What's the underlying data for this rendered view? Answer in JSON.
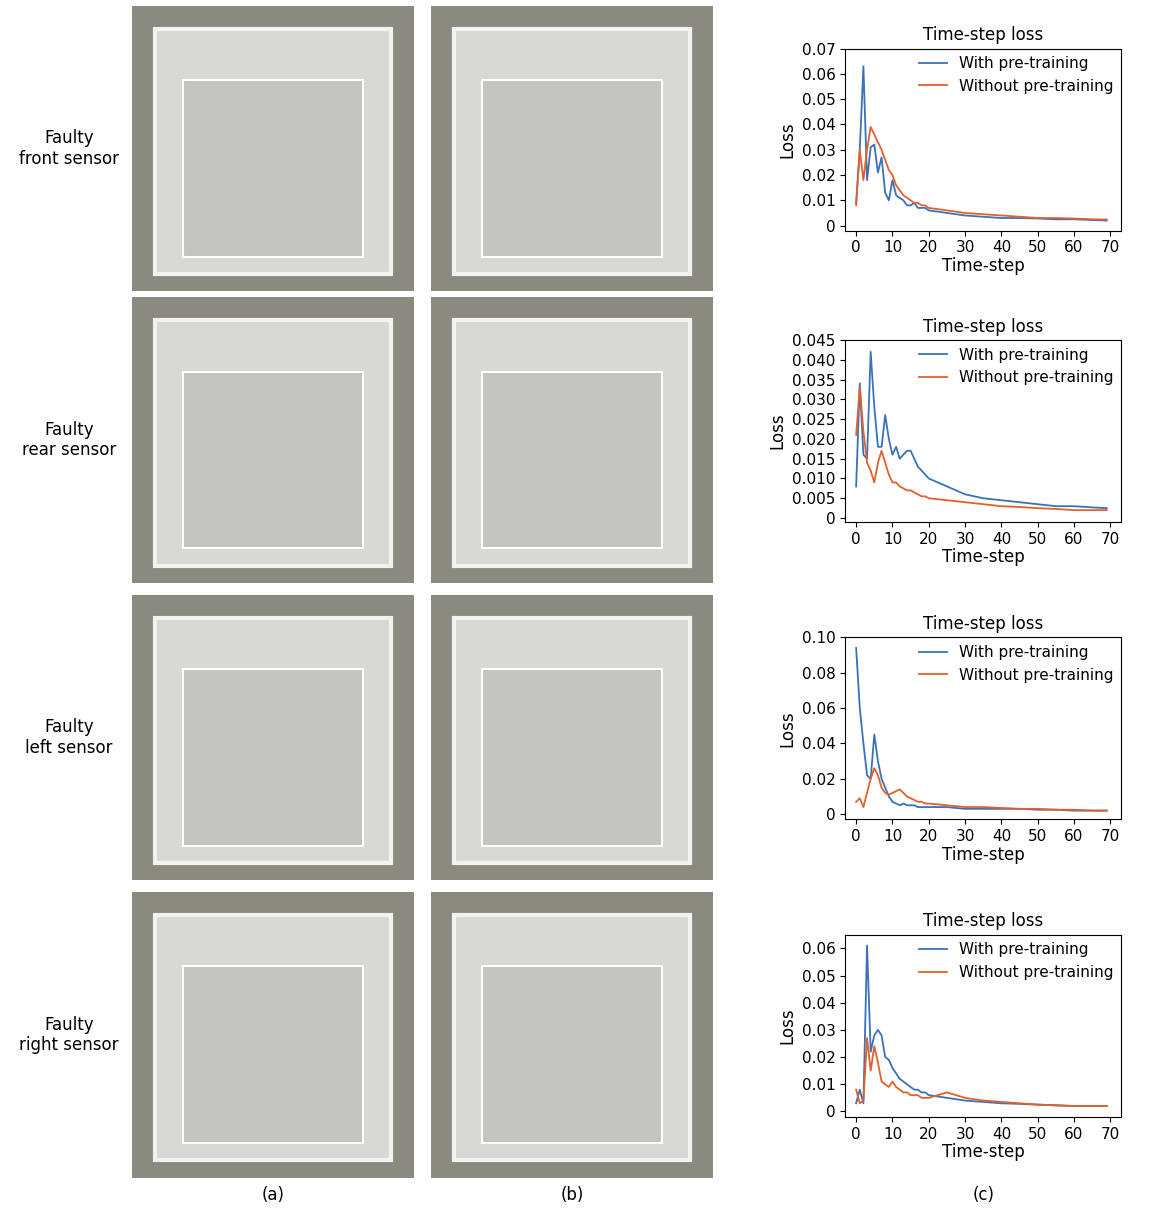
{
  "row_labels": [
    "Faulty\nfront sensor",
    "Faulty\nrear sensor",
    "Faulty\nleft sensor",
    "Faulty\nright sensor"
  ],
  "column_labels": [
    "(a)",
    "(b)",
    "(c)"
  ],
  "chart_data": [
    {
      "type": "line",
      "title": "Time-step loss",
      "x_label": "Time-step",
      "y_label": "Loss",
      "x": [
        0,
        1,
        2,
        3,
        4,
        5,
        6,
        7,
        8,
        9,
        10,
        11,
        12,
        13,
        14,
        15,
        16,
        17,
        18,
        19,
        20,
        25,
        30,
        35,
        40,
        45,
        50,
        55,
        60,
        65,
        69
      ],
      "series": [
        {
          "name": "With pre-training",
          "color": "#3a72b8",
          "values": [
            0.009,
            0.03,
            0.063,
            0.018,
            0.031,
            0.032,
            0.021,
            0.027,
            0.013,
            0.01,
            0.018,
            0.012,
            0.011,
            0.01,
            0.008,
            0.008,
            0.009,
            0.007,
            0.007,
            0.007,
            0.006,
            0.005,
            0.004,
            0.0035,
            0.003,
            0.003,
            0.0028,
            0.0025,
            0.0025,
            0.0022,
            0.002
          ]
        },
        {
          "name": "Without pre-training",
          "color": "#e0622b",
          "values": [
            0.008,
            0.03,
            0.018,
            0.03,
            0.039,
            0.036,
            0.033,
            0.03,
            0.026,
            0.022,
            0.02,
            0.016,
            0.014,
            0.012,
            0.011,
            0.01,
            0.009,
            0.009,
            0.008,
            0.008,
            0.007,
            0.006,
            0.005,
            0.0045,
            0.004,
            0.0035,
            0.003,
            0.003,
            0.0028,
            0.0025,
            0.0024
          ]
        }
      ],
      "xlim": [
        -3,
        73
      ],
      "xticks": [
        0,
        10,
        20,
        30,
        40,
        50,
        60,
        70
      ],
      "ylim": [
        -0.002,
        0.07
      ],
      "yticks": [
        0,
        0.01,
        0.02,
        0.03,
        0.04,
        0.05,
        0.06,
        0.07
      ],
      "legend": "upper right"
    },
    {
      "type": "line",
      "title": "Time-step loss",
      "x_label": "Time-step",
      "y_label": "Loss",
      "x": [
        0,
        1,
        2,
        3,
        4,
        5,
        6,
        7,
        8,
        9,
        10,
        11,
        12,
        13,
        14,
        15,
        16,
        17,
        18,
        19,
        20,
        25,
        30,
        35,
        40,
        45,
        50,
        55,
        60,
        65,
        69
      ],
      "series": [
        {
          "name": "With pre-training",
          "color": "#3a72b8",
          "values": [
            0.008,
            0.034,
            0.016,
            0.015,
            0.042,
            0.028,
            0.018,
            0.018,
            0.026,
            0.02,
            0.016,
            0.018,
            0.015,
            0.016,
            0.017,
            0.017,
            0.015,
            0.013,
            0.012,
            0.011,
            0.01,
            0.008,
            0.006,
            0.005,
            0.0045,
            0.004,
            0.0035,
            0.003,
            0.003,
            0.0027,
            0.0025
          ]
        },
        {
          "name": "Without pre-training",
          "color": "#e0622b",
          "values": [
            0.021,
            0.033,
            0.022,
            0.014,
            0.012,
            0.009,
            0.014,
            0.017,
            0.014,
            0.011,
            0.009,
            0.009,
            0.008,
            0.0075,
            0.007,
            0.007,
            0.0065,
            0.006,
            0.0055,
            0.0055,
            0.005,
            0.0045,
            0.004,
            0.0035,
            0.003,
            0.0028,
            0.0025,
            0.0023,
            0.002,
            0.002,
            0.002
          ]
        }
      ],
      "xlim": [
        -3,
        73
      ],
      "xticks": [
        0,
        10,
        20,
        30,
        40,
        50,
        60,
        70
      ],
      "ylim": [
        -0.001,
        0.045
      ],
      "yticks": [
        0,
        {
          "value": 0.005,
          "label": "0.005"
        },
        {
          "value": 0.01,
          "label": "0.010"
        },
        {
          "value": 0.015,
          "label": "0.015"
        },
        {
          "value": 0.02,
          "label": "0.020"
        },
        {
          "value": 0.025,
          "label": "0.025"
        },
        {
          "value": 0.03,
          "label": "0.030"
        },
        {
          "value": 0.035,
          "label": "0.035"
        },
        {
          "value": 0.04,
          "label": "0.040"
        },
        {
          "value": 0.045,
          "label": "0.045"
        }
      ],
      "legend": "upper right"
    },
    {
      "type": "line",
      "title": "Time-step loss",
      "x_label": "Time-step",
      "y_label": "Loss",
      "x": [
        0,
        1,
        2,
        3,
        4,
        5,
        6,
        7,
        8,
        9,
        10,
        11,
        12,
        13,
        14,
        15,
        16,
        17,
        18,
        19,
        20,
        25,
        30,
        35,
        40,
        45,
        50,
        55,
        60,
        65,
        69
      ],
      "series": [
        {
          "name": "With pre-training",
          "color": "#3a72b8",
          "values": [
            0.094,
            0.06,
            0.04,
            0.022,
            0.02,
            0.045,
            0.03,
            0.02,
            0.015,
            0.01,
            0.007,
            0.006,
            0.005,
            0.006,
            0.005,
            0.005,
            0.005,
            0.004,
            0.004,
            0.004,
            0.004,
            0.004,
            0.003,
            0.003,
            0.003,
            0.003,
            0.0025,
            0.0025,
            0.002,
            0.002,
            0.002
          ]
        },
        {
          "name": "Without pre-training",
          "color": "#e0622b",
          "values": [
            0.007,
            0.009,
            0.004,
            0.012,
            0.02,
            0.026,
            0.022,
            0.015,
            0.012,
            0.011,
            0.012,
            0.013,
            0.014,
            0.012,
            0.01,
            0.009,
            0.008,
            0.007,
            0.007,
            0.006,
            0.006,
            0.005,
            0.004,
            0.004,
            0.0035,
            0.003,
            0.003,
            0.0025,
            0.0025,
            0.002,
            0.002
          ]
        }
      ],
      "xlim": [
        -3,
        73
      ],
      "xticks": [
        0,
        10,
        20,
        30,
        40,
        50,
        60,
        70
      ],
      "ylim": [
        -0.003,
        0.1
      ],
      "yticks": [
        0,
        0.02,
        0.04,
        0.06,
        0.08,
        {
          "value": 0.1,
          "label": "0.10"
        }
      ],
      "legend": "upper right"
    },
    {
      "type": "line",
      "title": "Time-step loss",
      "x_label": "Time-step",
      "y_label": "Loss",
      "x": [
        0,
        1,
        2,
        3,
        4,
        5,
        6,
        7,
        8,
        9,
        10,
        11,
        12,
        13,
        14,
        15,
        16,
        17,
        18,
        19,
        20,
        25,
        30,
        35,
        40,
        45,
        50,
        55,
        60,
        65,
        69
      ],
      "series": [
        {
          "name": "With pre-training",
          "color": "#3a72b8",
          "values": [
            0.003,
            0.008,
            0.003,
            0.061,
            0.022,
            0.028,
            0.03,
            0.028,
            0.02,
            0.019,
            0.016,
            0.014,
            0.012,
            0.011,
            0.01,
            0.009,
            0.008,
            0.008,
            0.007,
            0.007,
            0.006,
            0.005,
            0.004,
            0.0035,
            0.003,
            0.0028,
            0.0025,
            0.0023,
            0.002,
            0.002,
            0.002
          ]
        },
        {
          "name": "Without pre-training",
          "color": "#e0622b",
          "values": [
            0.008,
            0.003,
            0.004,
            0.027,
            0.015,
            0.024,
            0.018,
            0.011,
            0.01,
            0.009,
            0.011,
            0.009,
            0.008,
            0.007,
            0.007,
            0.006,
            0.006,
            0.006,
            0.005,
            0.005,
            0.005,
            0.007,
            0.005,
            0.004,
            0.0035,
            0.003,
            0.0025,
            0.0022,
            0.002,
            0.002,
            0.002
          ]
        }
      ],
      "xlim": [
        -3,
        73
      ],
      "xticks": [
        0,
        10,
        20,
        30,
        40,
        50,
        60,
        70
      ],
      "ylim": [
        -0.002,
        0.065
      ],
      "yticks": [
        0,
        0.01,
        0.02,
        0.03,
        0.04,
        0.05,
        0.06
      ],
      "legend": "upper right"
    }
  ]
}
